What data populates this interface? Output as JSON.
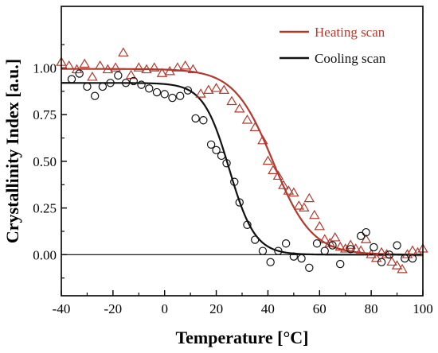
{
  "chart_data": {
    "type": "scatter",
    "xlabel": "Temperature [°C]",
    "ylabel": "Crystallinity Index [a.u.]",
    "xlim": [
      -40,
      100
    ],
    "ylim": [
      -0.22,
      1.33
    ],
    "xticks": [
      -40,
      -20,
      0,
      20,
      40,
      60,
      80,
      100
    ],
    "xtick_labels": [
      "-40",
      "-20",
      "0",
      "20",
      "40",
      "60",
      "80",
      "100"
    ],
    "yticks": [
      0.0,
      0.25,
      0.5,
      0.75,
      1.0
    ],
    "ytick_labels": [
      "0.00",
      "0.25",
      "0.50",
      "0.75",
      "1.00"
    ],
    "reference_line_y": 0.0,
    "grid": false,
    "legend_position": "top-right",
    "series": [
      {
        "name": "Heating scan",
        "color": "#b03a2e",
        "marker": "triangle-open",
        "points": [
          [
            -40,
            1.03
          ],
          [
            -37,
            1.01
          ],
          [
            -34,
            0.99
          ],
          [
            -31,
            1.02
          ],
          [
            -28,
            0.95
          ],
          [
            -25,
            1.01
          ],
          [
            -22,
            0.99
          ],
          [
            -19,
            1.0
          ],
          [
            -16,
            1.08
          ],
          [
            -13,
            0.96
          ],
          [
            -10,
            1.0
          ],
          [
            -7,
            0.99
          ],
          [
            -4,
            1.0
          ],
          [
            -1,
            0.97
          ],
          [
            2,
            0.98
          ],
          [
            5,
            1.0
          ],
          [
            8,
            1.01
          ],
          [
            11,
            0.99
          ],
          [
            14,
            0.86
          ],
          [
            17,
            0.88
          ],
          [
            20,
            0.89
          ],
          [
            23,
            0.88
          ],
          [
            26,
            0.82
          ],
          [
            29,
            0.78
          ],
          [
            32,
            0.72
          ],
          [
            35,
            0.68
          ],
          [
            38,
            0.61
          ],
          [
            40,
            0.5
          ],
          [
            42,
            0.45
          ],
          [
            44,
            0.42
          ],
          [
            46,
            0.37
          ],
          [
            48,
            0.34
          ],
          [
            50,
            0.33
          ],
          [
            52,
            0.26
          ],
          [
            54,
            0.25
          ],
          [
            56,
            0.3
          ],
          [
            58,
            0.21
          ],
          [
            60,
            0.15
          ],
          [
            62,
            0.08
          ],
          [
            64,
            0.06
          ],
          [
            66,
            0.09
          ],
          [
            68,
            0.04
          ],
          [
            70,
            0.03
          ],
          [
            72,
            0.05
          ],
          [
            74,
            0.03
          ],
          [
            76,
            0.02
          ],
          [
            78,
            0.08
          ],
          [
            80,
            0.0
          ],
          [
            82,
            -0.02
          ],
          [
            84,
            0.01
          ],
          [
            86,
            0.0
          ],
          [
            88,
            -0.04
          ],
          [
            90,
            -0.06
          ],
          [
            92,
            -0.08
          ],
          [
            94,
            0.0
          ],
          [
            96,
            0.02
          ],
          [
            98,
            0.01
          ],
          [
            100,
            0.03
          ]
        ],
        "fit": {
          "model": "logistic",
          "top": 0.995,
          "bottom": 0.0,
          "midpoint": 42,
          "width": 7.5
        }
      },
      {
        "name": "Cooling scan",
        "color": "#111111",
        "marker": "circle-open",
        "points": [
          [
            -36,
            0.94
          ],
          [
            -33,
            0.97
          ],
          [
            -30,
            0.9
          ],
          [
            -27,
            0.85
          ],
          [
            -24,
            0.9
          ],
          [
            -21,
            0.92
          ],
          [
            -18,
            0.96
          ],
          [
            -15,
            0.92
          ],
          [
            -12,
            0.93
          ],
          [
            -9,
            0.91
          ],
          [
            -6,
            0.89
          ],
          [
            -3,
            0.87
          ],
          [
            0,
            0.86
          ],
          [
            3,
            0.84
          ],
          [
            6,
            0.85
          ],
          [
            9,
            0.88
          ],
          [
            12,
            0.73
          ],
          [
            15,
            0.72
          ],
          [
            18,
            0.59
          ],
          [
            20,
            0.56
          ],
          [
            22,
            0.53
          ],
          [
            24,
            0.49
          ],
          [
            27,
            0.39
          ],
          [
            29,
            0.28
          ],
          [
            32,
            0.16
          ],
          [
            35,
            0.08
          ],
          [
            38,
            0.02
          ],
          [
            41,
            -0.04
          ],
          [
            44,
            0.02
          ],
          [
            47,
            0.06
          ],
          [
            50,
            -0.01
          ],
          [
            53,
            -0.02
          ],
          [
            56,
            -0.07
          ],
          [
            59,
            0.06
          ],
          [
            62,
            0.02
          ],
          [
            65,
            0.05
          ],
          [
            68,
            -0.05
          ],
          [
            72,
            0.03
          ],
          [
            76,
            0.1
          ],
          [
            78,
            0.12
          ],
          [
            81,
            0.04
          ],
          [
            84,
            -0.04
          ],
          [
            87,
            0.0
          ],
          [
            90,
            0.05
          ],
          [
            93,
            -0.02
          ],
          [
            96,
            -0.02
          ]
        ],
        "fit": {
          "model": "logistic",
          "top": 0.92,
          "bottom": 0.0,
          "midpoint": 25,
          "width": 5
        }
      }
    ]
  }
}
